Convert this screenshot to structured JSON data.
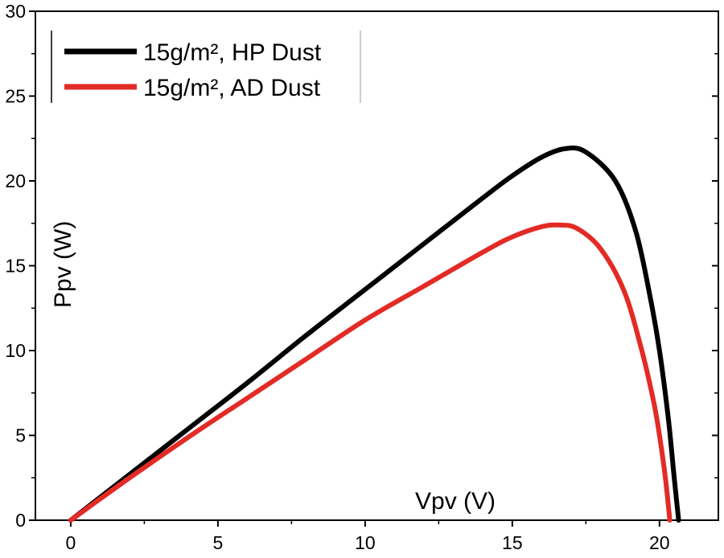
{
  "chart_data": {
    "type": "line",
    "title": "",
    "xlabel": "Vpv (V)",
    "ylabel": "Ppv (W)",
    "xlim": [
      -1.2,
      22
    ],
    "ylim": [
      0,
      30
    ],
    "xticks": [
      0,
      5,
      10,
      15,
      20
    ],
    "yticks": [
      0,
      5,
      10,
      15,
      20,
      25,
      30
    ],
    "grid": false,
    "legend_position": "top-left",
    "series": [
      {
        "name": "15g/m², HP Dust",
        "color": "#000000",
        "x": [
          0,
          2,
          4,
          6,
          8,
          10,
          12,
          14,
          15,
          16,
          16.8,
          17.5,
          18.5,
          19.2,
          19.7,
          20.0,
          20.3,
          20.5,
          20.65
        ],
        "y": [
          0,
          2.7,
          5.4,
          8.1,
          10.9,
          13.6,
          16.3,
          19.0,
          20.3,
          21.4,
          21.9,
          21.7,
          20.0,
          17.0,
          13.0,
          10.0,
          6.0,
          2.5,
          0
        ]
      },
      {
        "name": "15g/m², AD Dust",
        "color": "#e32b26",
        "x": [
          0,
          2,
          4,
          6,
          8,
          10,
          12,
          14,
          15,
          16,
          16.6,
          17.2,
          18.0,
          18.8,
          19.4,
          19.8,
          20.0,
          20.2,
          20.35
        ],
        "y": [
          0,
          2.5,
          4.9,
          7.2,
          9.5,
          11.8,
          13.8,
          15.8,
          16.7,
          17.3,
          17.4,
          17.2,
          16.0,
          13.5,
          10.0,
          7.0,
          5.0,
          2.5,
          0
        ]
      }
    ]
  }
}
